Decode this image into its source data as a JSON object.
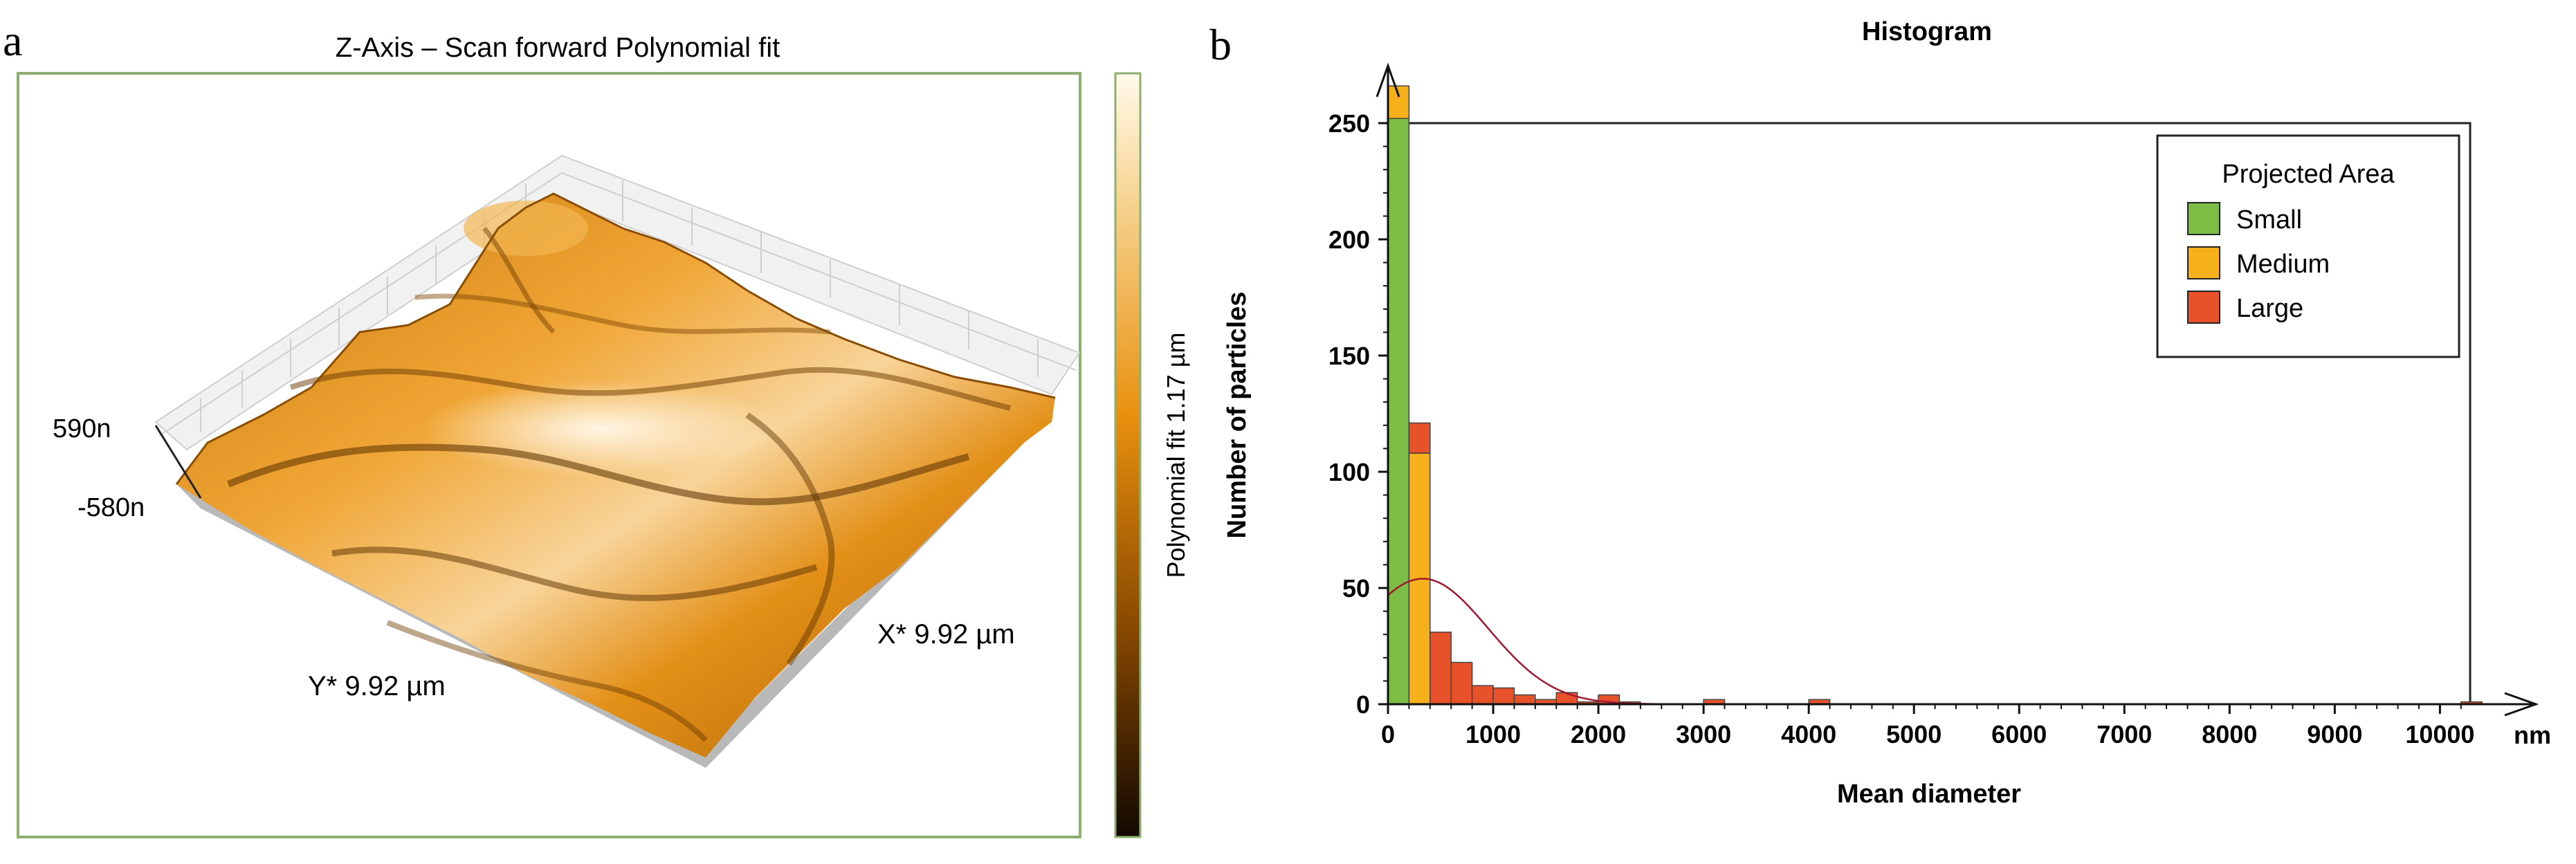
{
  "panel_a": {
    "label": "a",
    "title": "Z-Axis – Scan forward Polynomial fit",
    "z_max_label": "590n",
    "z_min_label": "-580n",
    "y_axis_label": "Y* 9.92 µm",
    "x_axis_label": "X* 9.92 µm",
    "colorbar_label": "Polynomial fit 1.17 µm",
    "colors": {
      "surface_light": "#f6c878",
      "surface_mid": "#e0900f",
      "surface_dark": "#5a3000",
      "frame": "#8fae72"
    }
  },
  "panel_b": {
    "label": "b",
    "legend": {
      "title": "Projected Area",
      "items": [
        {
          "name": "Small",
          "color": "#7cbd45"
        },
        {
          "name": "Medium",
          "color": "#f6b01a"
        },
        {
          "name": "Large",
          "color": "#e8522a"
        }
      ]
    },
    "x_unit": "nm"
  },
  "chart_data": {
    "type": "bar",
    "title": "Histogram",
    "xlabel": "Mean diameter",
    "ylabel": "Number of particles",
    "xlim": [
      0,
      10300
    ],
    "ylim": [
      0,
      250
    ],
    "bin_width": 200,
    "x_ticks": [
      0,
      1000,
      2000,
      3000,
      4000,
      5000,
      6000,
      7000,
      8000,
      9000,
      10000
    ],
    "y_ticks": [
      0,
      50,
      100,
      150,
      200,
      250
    ],
    "series": [
      {
        "name": "Small",
        "color": "#7cbd45",
        "bins": [
          {
            "x": 0,
            "value": 252
          }
        ]
      },
      {
        "name": "Medium",
        "color": "#f6b01a",
        "bins": [
          {
            "x": 0,
            "value": 14
          },
          {
            "x": 200,
            "value": 108
          }
        ]
      },
      {
        "name": "Large",
        "color": "#e8522a",
        "bins": [
          {
            "x": 200,
            "value": 13
          },
          {
            "x": 400,
            "value": 31
          },
          {
            "x": 600,
            "value": 18
          },
          {
            "x": 800,
            "value": 8
          },
          {
            "x": 1000,
            "value": 7
          },
          {
            "x": 1200,
            "value": 4
          },
          {
            "x": 1400,
            "value": 2
          },
          {
            "x": 1600,
            "value": 5
          },
          {
            "x": 1800,
            "value": 1
          },
          {
            "x": 2000,
            "value": 4
          },
          {
            "x": 2200,
            "value": 1
          },
          {
            "x": 3000,
            "value": 2
          },
          {
            "x": 4000,
            "value": 2
          },
          {
            "x": 10200,
            "value": 1
          }
        ]
      }
    ],
    "fit_curve": {
      "type": "normal",
      "color": "#a01830",
      "mu": 330,
      "sigma": 620,
      "peak": 54,
      "x_from": 0,
      "x_to": 2800
    }
  }
}
